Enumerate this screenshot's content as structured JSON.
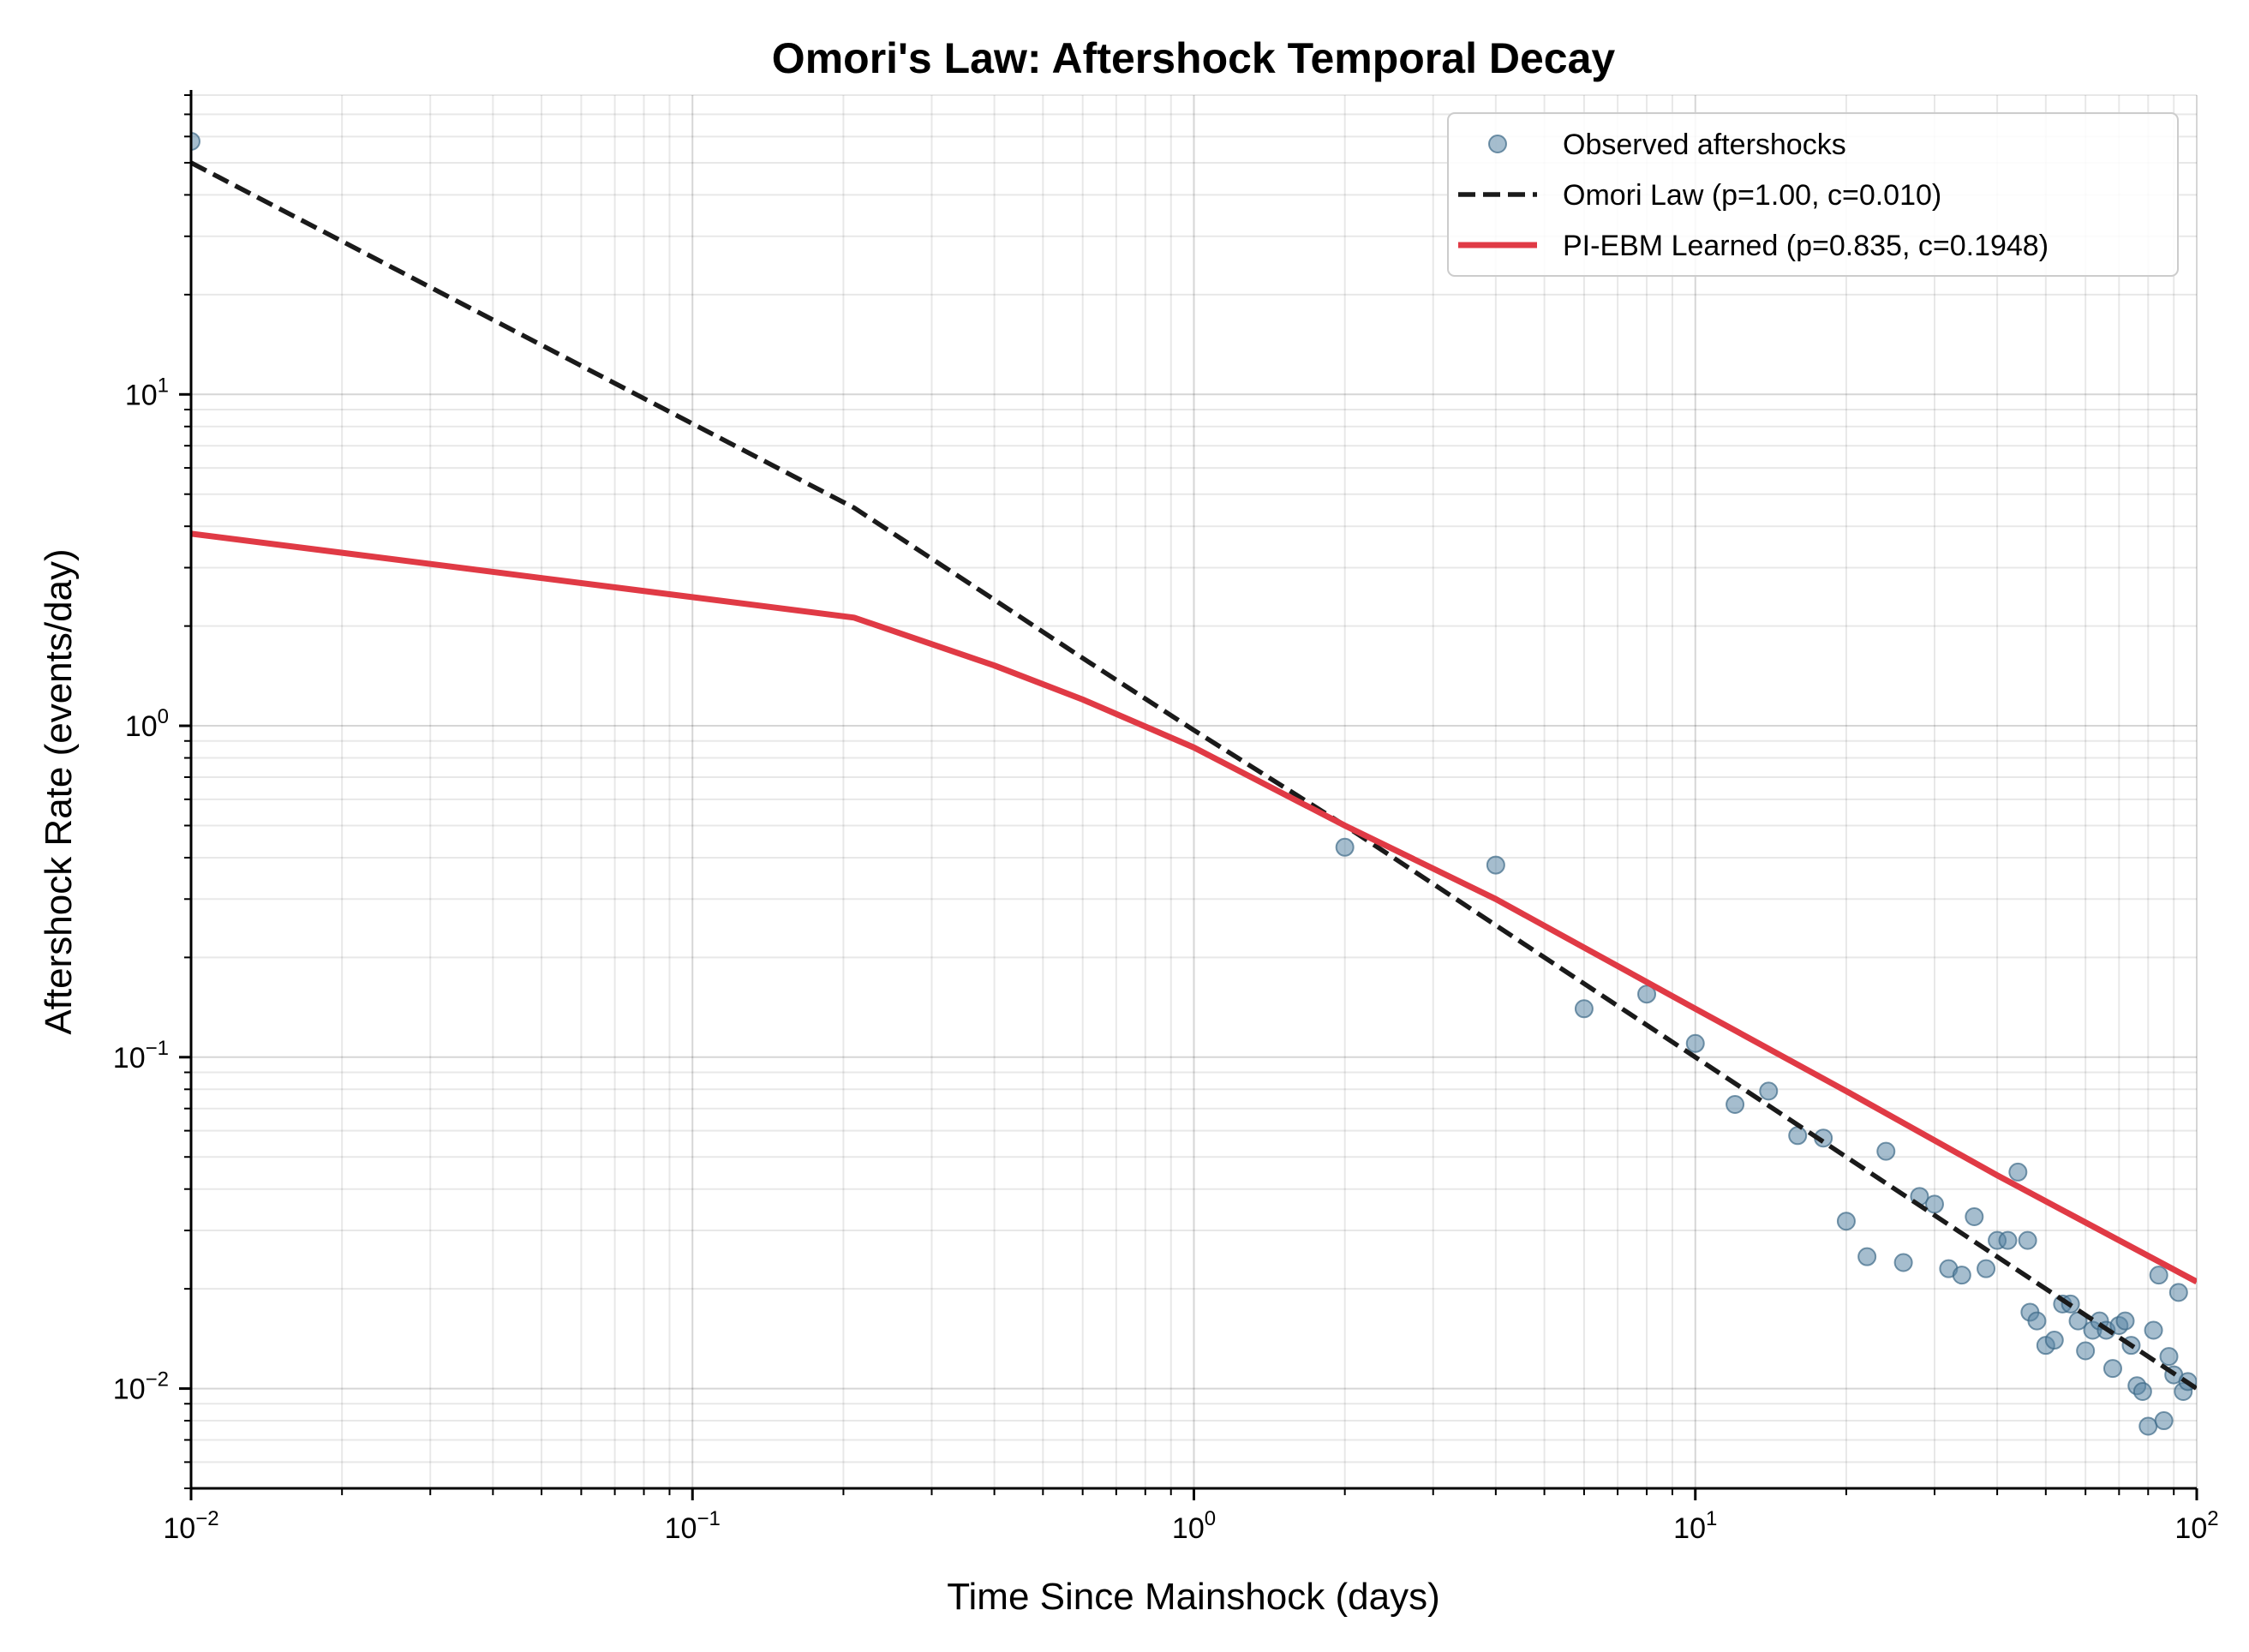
{
  "chart_data": {
    "type": "scatter",
    "title": "Omori's Law: Aftershock Temporal Decay",
    "xlabel": "Time Since Mainshock (days)",
    "ylabel": "Aftershock Rate (events/day)",
    "xscale": "log",
    "yscale": "log",
    "xlim": [
      0.01,
      100
    ],
    "ylim": [
      0.005,
      80
    ],
    "grid": true,
    "legend_position": "top-right",
    "x_ticks": [
      {
        "value": 0.01,
        "base": "10",
        "exp": "−2"
      },
      {
        "value": 0.1,
        "base": "10",
        "exp": "−1"
      },
      {
        "value": 1,
        "base": "10",
        "exp": "0"
      },
      {
        "value": 10,
        "base": "10",
        "exp": "1"
      },
      {
        "value": 100,
        "base": "10",
        "exp": "2"
      }
    ],
    "y_ticks": [
      {
        "value": 0.01,
        "base": "10",
        "exp": "−2"
      },
      {
        "value": 0.1,
        "base": "10",
        "exp": "−1"
      },
      {
        "value": 1,
        "base": "10",
        "exp": "0"
      },
      {
        "value": 10,
        "base": "10",
        "exp": "1"
      }
    ],
    "series": [
      {
        "name": "Observed aftershocks",
        "kind": "scatter",
        "color": "#5b87a6",
        "points": [
          [
            0.01,
            58
          ],
          [
            2,
            0.43
          ],
          [
            4,
            0.38
          ],
          [
            6,
            0.14
          ],
          [
            8,
            0.155
          ],
          [
            10,
            0.11
          ],
          [
            12,
            0.072
          ],
          [
            14,
            0.079
          ],
          [
            16,
            0.058
          ],
          [
            18,
            0.057
          ],
          [
            20,
            0.032
          ],
          [
            22,
            0.025
          ],
          [
            24,
            0.052
          ],
          [
            26,
            0.024
          ],
          [
            28,
            0.038
          ],
          [
            30,
            0.036
          ],
          [
            32,
            0.023
          ],
          [
            34,
            0.022
          ],
          [
            36,
            0.033
          ],
          [
            38,
            0.023
          ],
          [
            40,
            0.028
          ],
          [
            42,
            0.028
          ],
          [
            44,
            0.045
          ],
          [
            46,
            0.028
          ],
          [
            46.5,
            0.017
          ],
          [
            48,
            0.016
          ],
          [
            50,
            0.0135
          ],
          [
            52,
            0.014
          ],
          [
            54,
            0.018
          ],
          [
            56,
            0.018
          ],
          [
            58,
            0.016
          ],
          [
            60,
            0.013
          ],
          [
            62,
            0.015
          ],
          [
            64,
            0.016
          ],
          [
            66,
            0.015
          ],
          [
            68,
            0.0115
          ],
          [
            70,
            0.0155
          ],
          [
            72,
            0.016
          ],
          [
            74,
            0.0135
          ],
          [
            76,
            0.0102
          ],
          [
            78,
            0.0098
          ],
          [
            80,
            0.0077
          ],
          [
            82,
            0.015
          ],
          [
            84,
            0.022
          ],
          [
            86,
            0.008
          ],
          [
            88,
            0.0125
          ],
          [
            90,
            0.011
          ],
          [
            92,
            0.0195
          ],
          [
            94,
            0.0098
          ],
          [
            96,
            0.0105
          ]
        ]
      },
      {
        "name": "Omori Law (p=1.00, c=0.010)",
        "kind": "line",
        "style": "dashed",
        "color": "#1a1a1a",
        "points": [
          [
            0.01,
            50
          ],
          [
            0.21,
            4.55
          ],
          [
            0.4,
            2.4
          ],
          [
            0.6,
            1.6
          ],
          [
            1,
            0.97
          ],
          [
            2,
            0.5
          ],
          [
            4,
            0.25
          ],
          [
            10,
            0.1
          ],
          [
            20,
            0.05
          ],
          [
            40,
            0.025
          ],
          [
            100,
            0.01
          ]
        ]
      },
      {
        "name": "PI-EBM Learned (p=0.835, c=0.1948)",
        "kind": "line",
        "style": "solid",
        "color": "#e03a45",
        "points": [
          [
            0.01,
            3.8
          ],
          [
            0.21,
            2.12
          ],
          [
            0.4,
            1.52
          ],
          [
            0.6,
            1.2
          ],
          [
            1,
            0.86
          ],
          [
            2,
            0.5
          ],
          [
            4,
            0.3
          ],
          [
            10,
            0.14
          ],
          [
            20,
            0.079
          ],
          [
            40,
            0.044
          ],
          [
            100,
            0.021
          ]
        ]
      }
    ]
  }
}
